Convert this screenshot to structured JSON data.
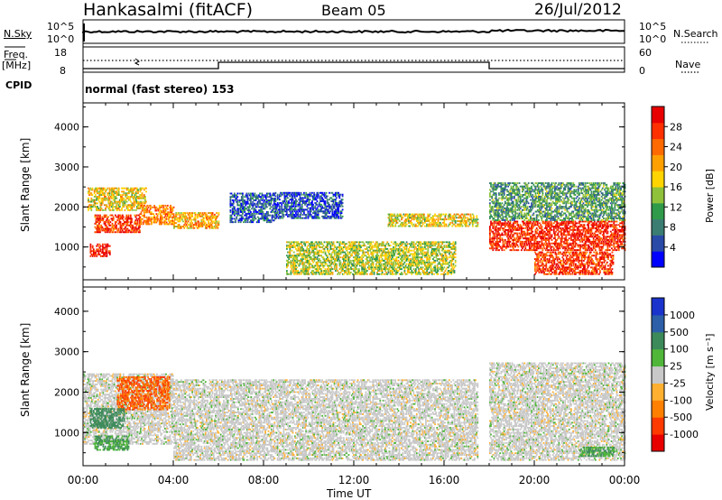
{
  "header": {
    "station": "Hankasalmi (fitACF)",
    "beam": "Beam 05",
    "date": "26/Jul/2012"
  },
  "noise_panel": {
    "left_label": "N.Sky",
    "right_label": "N.Search",
    "left_ticks": [
      "10^5",
      "10^0"
    ],
    "right_ticks": [
      "10^5",
      "10^0"
    ]
  },
  "freq_panel": {
    "left_label": "Freq.",
    "unit": "[MHz]",
    "left_ticks": [
      "18",
      "8"
    ],
    "right_label": "Nave",
    "right_ticks": [
      "60",
      "0"
    ],
    "cpid_label": "CPID"
  },
  "cpid_text": "normal (fast stereo) 153",
  "power_panel": {
    "ylabel": "Slant Range [km]",
    "yticks": [
      "4000",
      "3000",
      "2000",
      "1000"
    ],
    "colorbar_label": "Power [dB]",
    "colorbar_ticks": [
      "28",
      "24",
      "20",
      "16",
      "12",
      "8",
      "4"
    ],
    "colors": [
      "#0000ff",
      "#2a4aa8",
      "#3b7d72",
      "#2f9a4a",
      "#8fc23a",
      "#ffd400",
      "#ffa000",
      "#ff6a00",
      "#ff3000",
      "#e80000"
    ]
  },
  "velocity_panel": {
    "ylabel": "Slant Range [km]",
    "yticks": [
      "4000",
      "3000",
      "2000",
      "1000"
    ],
    "colorbar_label": "Velocity [m s⁻¹]",
    "colorbar_ticks": [
      "1000",
      "500",
      "100",
      "25",
      "-25",
      "-100",
      "-500",
      "-1000"
    ],
    "colors": [
      "#1a33cc",
      "#2d5fa8",
      "#3c8a5a",
      "#4fb63a",
      "#c8c8c8",
      "#ffb030",
      "#ff8000",
      "#ff3a00",
      "#e80000"
    ]
  },
  "x_axis": {
    "label": "Time UT",
    "ticks": [
      "00:00",
      "04:00",
      "08:00",
      "12:00",
      "16:00",
      "20:00",
      "00:00"
    ]
  },
  "chart_data": {
    "type": "heatmap",
    "title": "Hankasalmi (fitACF)  Beam 05  26/Jul/2012",
    "xlabel": "Time UT",
    "ylabel": "Slant Range [km]",
    "xlim": [
      "00:00",
      "24:00"
    ],
    "ylim": [
      180,
      4600
    ],
    "power_db_range": [
      3,
      30
    ],
    "velocity_range_ms": [
      -1000,
      1000
    ],
    "echo_regions_power": [
      {
        "t0": 0.2,
        "t1": 2.8,
        "r0": 1900,
        "r1": 2450,
        "db": 18
      },
      {
        "t0": 0.5,
        "t1": 2.5,
        "r0": 1350,
        "r1": 1800,
        "db": 26
      },
      {
        "t0": 0.3,
        "t1": 1.2,
        "r0": 750,
        "r1": 1050,
        "db": 28
      },
      {
        "t0": 2.5,
        "t1": 4.0,
        "r0": 1550,
        "r1": 2050,
        "db": 22
      },
      {
        "t0": 4.0,
        "t1": 6.0,
        "r0": 1450,
        "r1": 1850,
        "db": 20
      },
      {
        "t0": 6.5,
        "t1": 8.5,
        "r0": 1600,
        "r1": 2350,
        "db": 8
      },
      {
        "t0": 8.5,
        "t1": 11.5,
        "r0": 1700,
        "r1": 2350,
        "db": 7
      },
      {
        "t0": 13.5,
        "t1": 17.5,
        "r0": 1500,
        "r1": 1800,
        "db": 18
      },
      {
        "t0": 9.0,
        "t1": 16.5,
        "r0": 300,
        "r1": 1100,
        "db": 16
      },
      {
        "t0": 18.0,
        "t1": 24.0,
        "r0": 900,
        "r1": 1650,
        "db": 27
      },
      {
        "t0": 18.0,
        "t1": 24.0,
        "r0": 1650,
        "r1": 2600,
        "db": 12
      },
      {
        "t0": 20.0,
        "t1": 23.5,
        "r0": 300,
        "r1": 850,
        "db": 26
      }
    ],
    "echo_regions_velocity": [
      {
        "t0": 0.0,
        "t1": 4.0,
        "r0": 700,
        "r1": 2450,
        "v": 0
      },
      {
        "t0": 1.5,
        "t1": 3.8,
        "r0": 1550,
        "r1": 2350,
        "v": -500
      },
      {
        "t0": 0.3,
        "t1": 1.8,
        "r0": 1100,
        "r1": 1600,
        "v": 150
      },
      {
        "t0": 0.5,
        "t1": 2.0,
        "r0": 550,
        "r1": 900,
        "v": 100
      },
      {
        "t0": 4.0,
        "t1": 17.5,
        "r0": 300,
        "r1": 2300,
        "v": 0
      },
      {
        "t0": 18.0,
        "t1": 24.0,
        "r0": 300,
        "r1": 2700,
        "v": 0
      },
      {
        "t0": 22.0,
        "t1": 23.5,
        "r0": 400,
        "r1": 650,
        "v": 100
      }
    ]
  }
}
